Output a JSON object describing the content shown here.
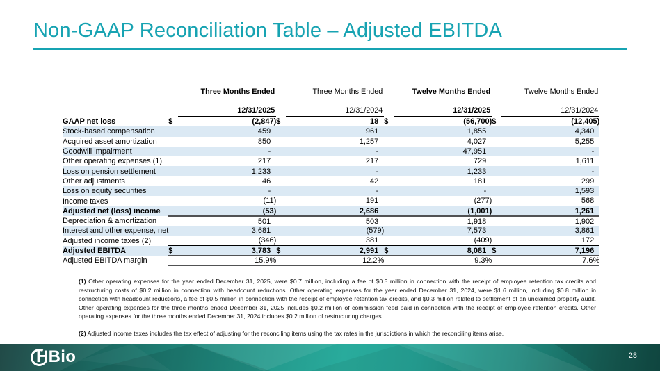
{
  "slide": {
    "title": "Non-GAAP Reconciliation Table – Adjusted EBITDA",
    "page_number": "28",
    "logo_text": "HBio"
  },
  "colors": {
    "accent_teal": "#17a3b2",
    "row_stripe": "#dbe9f4",
    "footer_dark": "#143f3c",
    "footer_light": "#29ab9c"
  },
  "table": {
    "column_headers": [
      {
        "period": "Three Months Ended",
        "date": "12/31/2025",
        "emphasis": true
      },
      {
        "period": "Three Months Ended",
        "date": "12/31/2024",
        "emphasis": false
      },
      {
        "period": "Twelve Months Ended",
        "date": "12/31/2025",
        "emphasis": true
      },
      {
        "period": "Twelve Months Ended",
        "date": "12/31/2024",
        "emphasis": false
      }
    ],
    "rows": [
      {
        "label": "GAAP net loss",
        "dollar_sign": true,
        "bold": true,
        "shaded": false,
        "rule_above": false,
        "rule_below": false,
        "values": [
          "(2,847)",
          "18",
          "(56,700)",
          "(12,405)"
        ]
      },
      {
        "label": "Stock-based compensation",
        "dollar_sign": false,
        "bold": false,
        "shaded": true,
        "rule_above": false,
        "rule_below": false,
        "values": [
          "459",
          "961",
          "1,855",
          "4,340"
        ]
      },
      {
        "label": "Acquired asset amortization",
        "dollar_sign": false,
        "bold": false,
        "shaded": false,
        "rule_above": false,
        "rule_below": false,
        "values": [
          "850",
          "1,257",
          "4,027",
          "5,255"
        ]
      },
      {
        "label": "Goodwill impairment",
        "dollar_sign": false,
        "bold": false,
        "shaded": true,
        "rule_above": false,
        "rule_below": false,
        "values": [
          "-",
          "-",
          "47,951",
          "-"
        ]
      },
      {
        "label": "Other operating expenses (1)",
        "dollar_sign": false,
        "bold": false,
        "shaded": false,
        "rule_above": false,
        "rule_below": false,
        "values": [
          "217",
          "217",
          "729",
          "1,611"
        ]
      },
      {
        "label": "Loss on pension settlement",
        "dollar_sign": false,
        "bold": false,
        "shaded": true,
        "rule_above": false,
        "rule_below": false,
        "values": [
          "1,233",
          "-",
          "1,233",
          "-"
        ]
      },
      {
        "label": "Other adjustments",
        "dollar_sign": false,
        "bold": false,
        "shaded": false,
        "rule_above": false,
        "rule_below": false,
        "values": [
          "46",
          "42",
          "181",
          "299"
        ]
      },
      {
        "label": "Loss on equity securities",
        "dollar_sign": false,
        "bold": false,
        "shaded": true,
        "rule_above": false,
        "rule_below": false,
        "values": [
          "-",
          "-",
          "-",
          "1,593"
        ]
      },
      {
        "label": "Income taxes",
        "dollar_sign": false,
        "bold": false,
        "shaded": false,
        "rule_above": false,
        "rule_below": false,
        "values": [
          "(11)",
          "191",
          "(277)",
          "568"
        ]
      },
      {
        "label": "Adjusted net (loss) income",
        "dollar_sign": false,
        "bold": true,
        "shaded": true,
        "rule_above": true,
        "rule_below": true,
        "values": [
          "(53)",
          "2,686",
          "(1,001)",
          "1,261"
        ]
      },
      {
        "label": "Depreciation & amortization",
        "dollar_sign": false,
        "bold": false,
        "shaded": false,
        "rule_above": false,
        "rule_below": false,
        "values": [
          "501",
          "503",
          "1,918",
          "1,902"
        ]
      },
      {
        "label": "Interest and other expense, net",
        "dollar_sign": false,
        "bold": false,
        "shaded": true,
        "rule_above": false,
        "rule_below": false,
        "values": [
          "3,681",
          "(579)",
          "7,573",
          "3,861"
        ]
      },
      {
        "label": "Adjusted income taxes (2)",
        "dollar_sign": false,
        "bold": false,
        "shaded": false,
        "rule_above": false,
        "rule_below": false,
        "values": [
          "(346)",
          "381",
          "(409)",
          "172"
        ]
      },
      {
        "label": "Adjusted EBITDA",
        "dollar_sign": true,
        "bold": true,
        "shaded": true,
        "rule_above": true,
        "rule_below": true,
        "values": [
          "3,783",
          "2,991",
          "8,081",
          "7,196"
        ]
      },
      {
        "label": "Adjusted EBITDA margin",
        "dollar_sign": false,
        "bold": false,
        "shaded": false,
        "rule_above": false,
        "rule_below": true,
        "values": [
          "15.9%",
          "12.2%",
          "9.3%",
          "7.6%"
        ]
      }
    ]
  },
  "footnotes": [
    {
      "marker": "(1)",
      "text": "Other operating expenses for the year ended December 31, 2025, were $0.7 million, including a fee of $0.5 million in connection with the receipt of employee retention tax credits and restructuring costs of $0.2 million in connection with headcount reductions. Other operating expenses for the year ended December 31, 2024, were $1.6 million, including $0.8 million in connection with headcount reductions, a fee of $0.5 million in connection with the receipt of employee retention tax credits, and $0.3 million related to settlement of an unclaimed property audit. Other operating expenses for the three months ended December 31, 2025 includes $0.2 million of commission feed paid in connection with the receipt of employee retention credits. Other operating expenses for the three months ended December 31, 2024 includes $0.2 million of restructuring charges."
    },
    {
      "marker": "(2)",
      "text": "Adjusted income taxes includes the tax effect of adjusting for the reconciling items using the tax rates in the jurisdictions in which the reconciling items arise."
    }
  ]
}
